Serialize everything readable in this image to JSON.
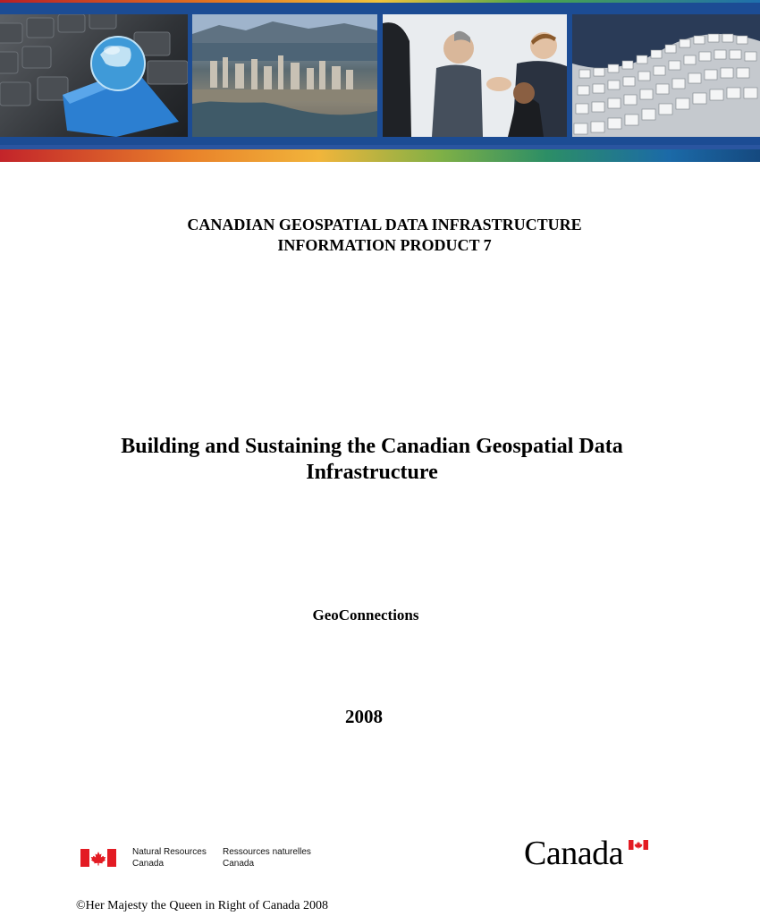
{
  "banner": {
    "images": [
      {
        "name": "keyboard-globe-image"
      },
      {
        "name": "city-aerial-image"
      },
      {
        "name": "business-handshake-image"
      },
      {
        "name": "binary-data-image"
      }
    ],
    "colors": {
      "band": "#1c4c94",
      "red": "#c3242a",
      "orange": "#e9822a",
      "green": "#7fb046"
    }
  },
  "document": {
    "series_line1": "CANADIAN GEOSPATIAL DATA INFRASTRUCTURE",
    "series_line2": "INFORMATION PRODUCT 7",
    "title_line1": "Building and Sustaining the Canadian Geospatial Data",
    "title_line2": "Infrastructure",
    "author": "GeoConnections",
    "year": "2008"
  },
  "footer": {
    "nrcan_en_line1": "Natural Resources",
    "nrcan_en_line2": "Canada",
    "nrcan_fr_line1": "Ressources naturelles",
    "nrcan_fr_line2": "Canada",
    "wordmark": "Canada",
    "copyright": "©Her Majesty the Queen in Right of Canada 2008",
    "flag_red": "#e31b23"
  }
}
